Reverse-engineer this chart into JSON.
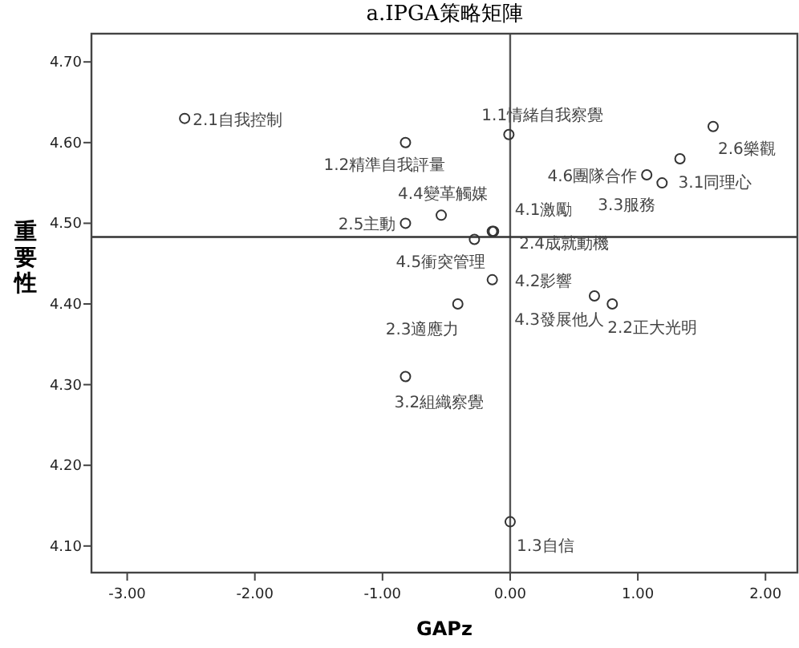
{
  "chart_data": {
    "type": "scatter",
    "title": "a.IPGA策略矩陣",
    "xlabel": "GAPz",
    "ylabel": "重要性",
    "xlim": [
      -3.28,
      2.25
    ],
    "ylim": [
      4.067,
      4.735
    ],
    "xticks": [
      {
        "value": -3,
        "label": "-3.00"
      },
      {
        "value": -2,
        "label": "-2.00"
      },
      {
        "value": -1,
        "label": "-1.00"
      },
      {
        "value": 0,
        "label": "0.00"
      },
      {
        "value": 1,
        "label": "1.00"
      },
      {
        "value": 2,
        "label": "2.00"
      }
    ],
    "yticks": [
      {
        "value": 4.1,
        "label": "4.10"
      },
      {
        "value": 4.2,
        "label": "4.20"
      },
      {
        "value": 4.3,
        "label": "4.30"
      },
      {
        "value": 4.4,
        "label": "4.40"
      },
      {
        "value": 4.5,
        "label": "4.50"
      },
      {
        "value": 4.6,
        "label": "4.60"
      },
      {
        "value": 4.7,
        "label": "4.70"
      }
    ],
    "marker": "circle",
    "grid": false,
    "ref_lines": [
      {
        "axis": "x",
        "value": 0,
        "color": "#555555"
      },
      {
        "axis": "y",
        "value": 4.483,
        "color": "#333333"
      }
    ],
    "series": [
      {
        "color": "#333333",
        "x": [
          -2.55,
          -0.01,
          -0.82,
          1.59,
          1.33,
          1.07,
          1.19,
          -0.54,
          -0.82,
          -0.14,
          -0.13,
          -0.28,
          -0.14,
          -0.41,
          0.66,
          0.8,
          -0.82,
          0.0
        ],
        "values": [
          4.63,
          4.61,
          4.6,
          4.62,
          4.58,
          4.56,
          4.55,
          4.51,
          4.5,
          4.49,
          4.49,
          4.48,
          4.43,
          4.4,
          4.41,
          4.4,
          4.31,
          4.13
        ]
      }
    ],
    "annotations": [
      {
        "text": "2.1自我控制",
        "x": -2.55,
        "y": 4.63
      },
      {
        "text": "1.1情緒自我察覺",
        "x": -0.01,
        "y": 4.61
      },
      {
        "text": "1.2精準自我評量",
        "x": -0.82,
        "y": 4.6
      },
      {
        "text": "2.6樂觀",
        "x": 1.59,
        "y": 4.62
      },
      {
        "text": "3.1同理心",
        "x": 1.33,
        "y": 4.58
      },
      {
        "text": "4.6團隊合作",
        "x": 1.07,
        "y": 4.56
      },
      {
        "text": "3.3服務",
        "x": 1.19,
        "y": 4.55
      },
      {
        "text": "4.4變革觸媒",
        "x": -0.54,
        "y": 4.51
      },
      {
        "text": "2.5主動",
        "x": -0.82,
        "y": 4.5
      },
      {
        "text": "4.1激勵",
        "x": -0.14,
        "y": 4.49
      },
      {
        "text": "2.4成就動機",
        "x": -0.13,
        "y": 4.49
      },
      {
        "text": "4.5衝突管理",
        "x": -0.28,
        "y": 4.48
      },
      {
        "text": "4.2影響",
        "x": -0.14,
        "y": 4.43
      },
      {
        "text": "2.3適應力",
        "x": -0.41,
        "y": 4.4
      },
      {
        "text": "4.3發展他人",
        "x": 0.66,
        "y": 4.41
      },
      {
        "text": "2.2正大光明",
        "x": 0.8,
        "y": 4.4
      },
      {
        "text": "3.2組織察覺",
        "x": -0.82,
        "y": 4.31
      },
      {
        "text": "1.3自信",
        "x": 0.0,
        "y": 4.13
      }
    ]
  }
}
